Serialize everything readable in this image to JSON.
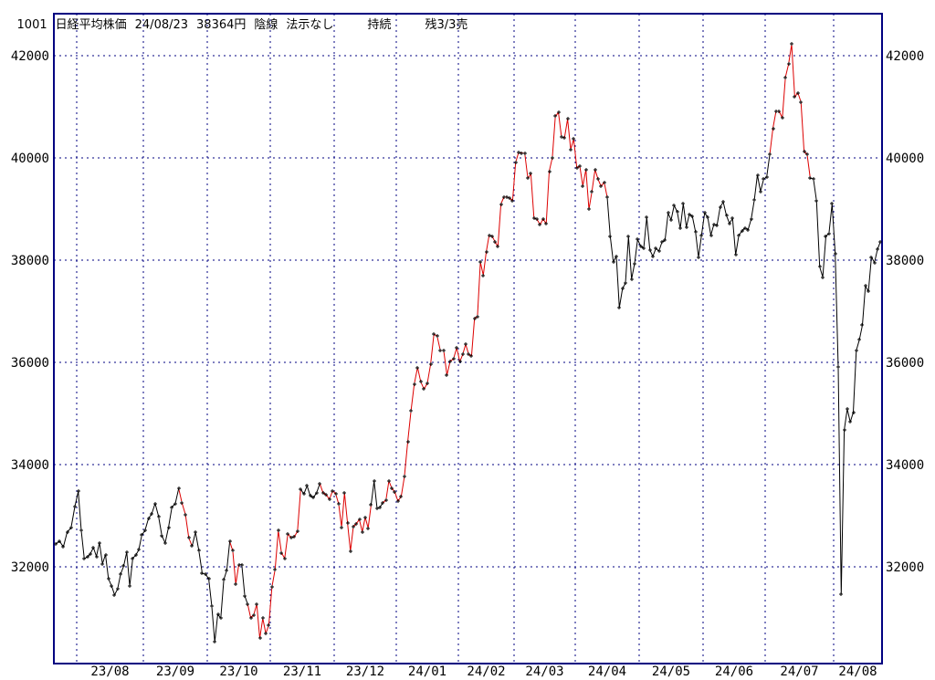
{
  "header": {
    "code": "1001",
    "name": "日経平均株価",
    "date": "24/08/23",
    "price": "38364円",
    "candle": "陰線",
    "signal": "法示なし",
    "status": "持続",
    "remaining": "残3/3売"
  },
  "colors": {
    "frame": "#000080",
    "grid": "#000080",
    "line_black": "#000000",
    "line_red": "#dd0000",
    "marker": "#000000",
    "background": "#ffffff",
    "text": "#000000"
  },
  "chart_data": {
    "type": "line",
    "title": "1001 日経平均株価 24/08/23 38364円 陰線 法示なし 持続 残3/3売",
    "ylabel": "円",
    "y_ticks": [
      42000,
      40000,
      38000,
      36000,
      34000,
      32000
    ],
    "ylim": [
      30100,
      42820
    ],
    "grid": "dashed",
    "marker": "plus",
    "segment_color_codes": {
      "r": "#dd0000",
      "b": "#000000"
    },
    "x_axis_month_labels": [
      "23/08",
      "23/09",
      "23/10",
      "23/11",
      "23/12",
      "24/01",
      "24/02",
      "24/03",
      "24/04",
      "24/05",
      "24/06",
      "24/07",
      "24/08"
    ],
    "months": [
      {
        "label": "",
        "values": [
          32450,
          32500,
          32390,
          32680,
          32760,
          33170
        ],
        "colors": "bbbbbb"
      },
      {
        "label": "23/08",
        "values": [
          33476,
          32707,
          32159,
          32193,
          32254,
          32377,
          32204,
          32473,
          32059,
          32239,
          31766,
          31626,
          31451,
          31566,
          31857,
          32010,
          32287,
          31624,
          32169,
          32227,
          32333,
          32619
        ],
        "colors": "bbbbbbbbbbbbbbbbbbbbbb"
      },
      {
        "label": "23/09",
        "values": [
          32711,
          32939,
          33037,
          33241,
          32991,
          32607,
          32467,
          32776,
          33168,
          33240,
          33533,
          33242,
          33023,
          32571,
          32402,
          32678,
          32315,
          31872,
          31858
        ],
        "colors": "bbbbbbbbbbbrrrrbbbb"
      },
      {
        "label": "23/10",
        "values": [
          31760,
          31238,
          30527,
          31075,
          30995,
          31746,
          31936,
          32494,
          32316,
          31659,
          32040,
          32042,
          31431,
          31259,
          30999,
          31062,
          31270,
          30602,
          30992,
          30697,
          30859
        ],
        "colors": "bbbbbbbbrrrbbbrrrrrrr"
      },
      {
        "label": "23/11",
        "values": [
          31602,
          31950,
          32708,
          32272,
          32166,
          32646,
          32568,
          32585,
          32696,
          33520,
          33424,
          33585,
          33388,
          33354,
          33452,
          33626,
          33448,
          33409,
          33322,
          33487
        ],
        "colors": "rrrrrrrrrrbbbbbbrrrr"
      },
      {
        "label": "23/12",
        "values": [
          33432,
          33231,
          32776,
          33445,
          32858,
          32308,
          32791,
          32844,
          32926,
          32686,
          32971,
          32758,
          33219,
          33676,
          33140,
          33169,
          33254,
          33306,
          33681,
          33540,
          33464
        ],
        "colors": "rrrrrrrrrrrrrbbbbrrrr"
      },
      {
        "label": "24/01",
        "values": [
          33288,
          33377,
          33763,
          34441,
          35049,
          35577,
          35901,
          35619,
          35477,
          35591,
          35963,
          36546,
          36517,
          36226,
          36236,
          35751,
          36026,
          36065,
          36286
        ],
        "colors": "rrrrrrrrrrrrrrrrrrr"
      },
      {
        "label": "24/02",
        "values": [
          36011,
          36158,
          36354,
          36160,
          36119,
          36863,
          36897,
          37963,
          37703,
          38157,
          38487,
          38470,
          38363,
          38262,
          39098,
          39233,
          39239,
          39208,
          39166
        ],
        "colors": "rrrrrrrrrrrrrrrrrrr"
      },
      {
        "label": "24/03",
        "values": [
          39910,
          40109,
          40098,
          40090,
          39599,
          39688,
          38820,
          38797,
          38695,
          38807,
          38708,
          39740,
          40003,
          40815,
          40888,
          40414,
          40398,
          40762,
          40168,
          40369
        ],
        "colors": "rrrrrrrrrrrrrrrrrrrr"
      },
      {
        "label": "24/04",
        "values": [
          39803,
          39838,
          39451,
          39773,
          38992,
          39347,
          39773,
          39581,
          39442,
          39523,
          39232,
          38471,
          37961,
          38079,
          37068,
          37438,
          37552,
          38460,
          37628,
          37935,
          38405
        ],
        "colors": "rrrrrrrrrrrbbbbbbbbbb"
      },
      {
        "label": "24/05",
        "values": [
          38274,
          38236,
          38835,
          38202,
          38074,
          38229,
          38179,
          38356,
          38385,
          38920,
          38787,
          39069,
          38946,
          38617,
          39103,
          38646,
          38900,
          38855,
          38557,
          38054,
          38488
        ],
        "colors": "bbbbbbbbbbbbbbbbbbbbb"
      },
      {
        "label": "24/06",
        "values": [
          38923,
          38837,
          38490,
          38703,
          38684,
          39038,
          39135,
          38876,
          38720,
          38814,
          38102,
          38482,
          38570,
          38633,
          38596,
          38804,
          39173,
          39667,
          39341,
          39583
        ],
        "colors": "bbbbbbbbbbbbbbbbbbbb"
      },
      {
        "label": "24/07",
        "values": [
          39631,
          40074,
          40580,
          40913,
          40912,
          40780,
          41580,
          41831,
          42224,
          41190,
          41275,
          41097,
          40126,
          40063,
          39599,
          39594,
          39154,
          37869,
          37667,
          38468,
          38525,
          39101
        ],
        "colors": "bbrrrrrrrrrrrrrbbbbbbb"
      },
      {
        "label": "24/08",
        "values": [
          38126,
          35909,
          31458,
          34675,
          35090,
          34831,
          35025,
          36232,
          36442,
          36726,
          37497,
          37388,
          38062,
          37951,
          38211,
          38364
        ],
        "colors": "bbbbbbbbbbbbbbbb"
      }
    ]
  }
}
